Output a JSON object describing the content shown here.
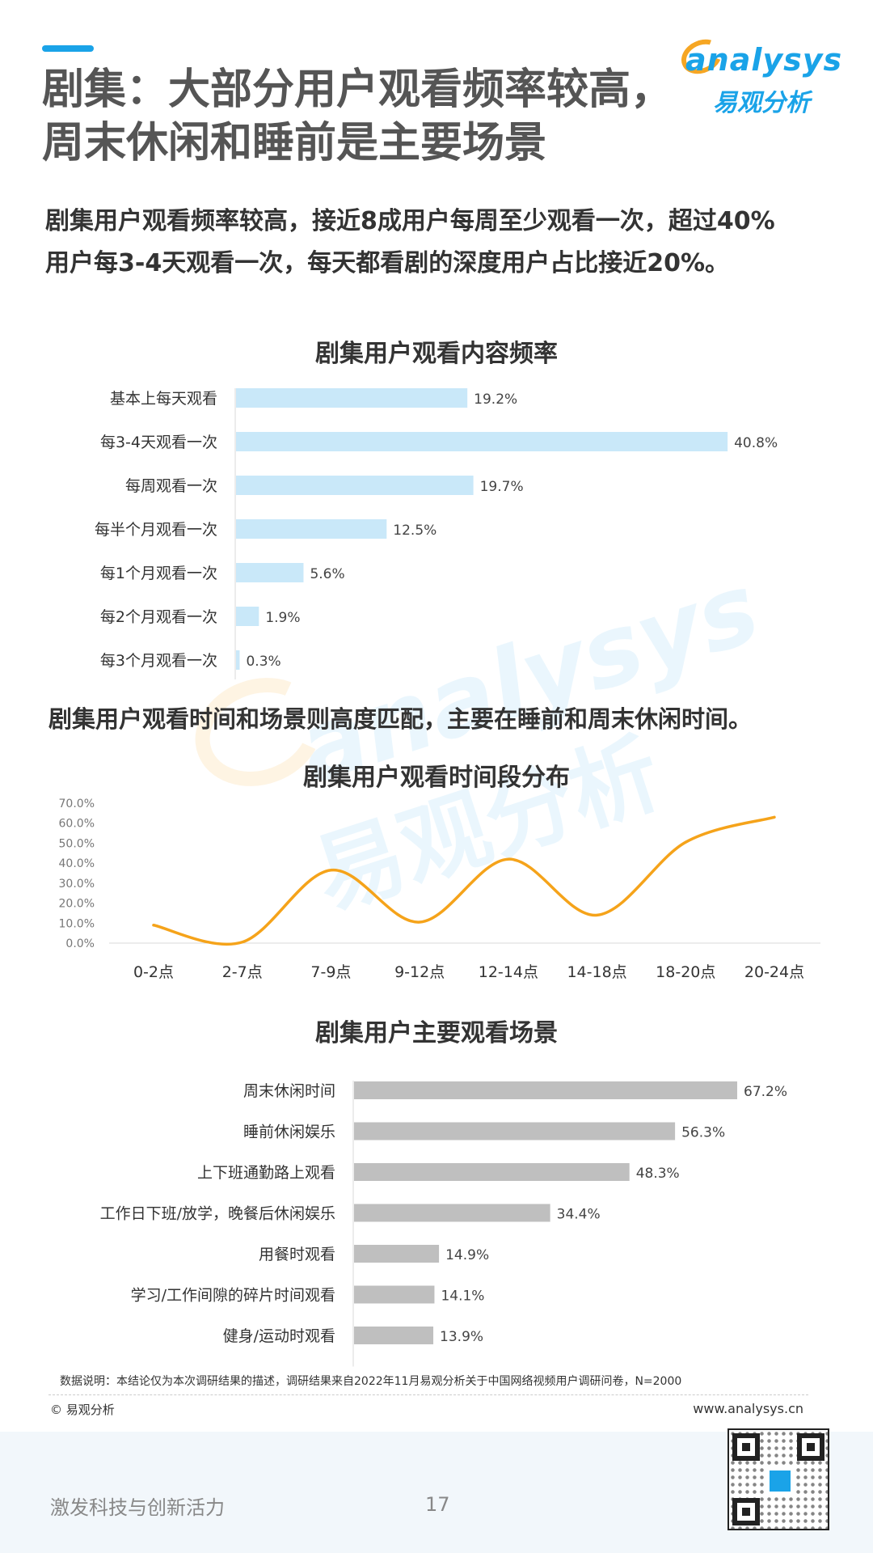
{
  "header": {
    "title_line1": "剧集：大部分用户观看频率较高，",
    "title_line2": "周末休闲和睡前是主要场景",
    "logo_en": "analysys",
    "logo_cn": "易观分析",
    "accent_color": "#1aa3e8"
  },
  "summary_line1": "剧集用户观看频率较高，接近8成用户每周至少观看一次，超过40%",
  "summary_line2": "用户每3-4天观看一次，每天都看剧的深度用户占比接近20%。",
  "subsummary": "剧集用户观看时间和场景则高度匹配，主要在睡前和周末休闲时间。",
  "chart_data": [
    {
      "type": "bar",
      "orientation": "horizontal",
      "title": "剧集用户观看内容频率",
      "categories": [
        "基本上每天观看",
        "每3-4天观看一次",
        "每周观看一次",
        "每半个月观看一次",
        "每1个月观看一次",
        "每2个月观看一次",
        "每3个月观看一次"
      ],
      "values": [
        19.2,
        40.8,
        19.7,
        12.5,
        5.6,
        1.9,
        0.3
      ],
      "labels": [
        "19.2%",
        "40.8%",
        "19.7%",
        "12.5%",
        "5.6%",
        "1.9%",
        "0.3%"
      ],
      "color": "#c9e8f9",
      "xlim": [
        0,
        42
      ]
    },
    {
      "type": "line",
      "title": "剧集用户观看时间段分布",
      "categories": [
        "0-2点",
        "2-7点",
        "7-9点",
        "9-12点",
        "12-14点",
        "14-18点",
        "18-20点",
        "20-24点"
      ],
      "values": [
        9.0,
        0.5,
        36.5,
        10.5,
        42.0,
        14.0,
        50.5,
        63.0
      ],
      "yticks": [
        "0.0%",
        "10.0%",
        "20.0%",
        "30.0%",
        "40.0%",
        "50.0%",
        "60.0%",
        "70.0%"
      ],
      "ylim": [
        0,
        70
      ],
      "color": "#f5a31a",
      "smooth": true
    },
    {
      "type": "bar",
      "orientation": "horizontal",
      "title": "剧集用户主要观看场景",
      "categories": [
        "周末休闲时间",
        "睡前休闲娱乐",
        "上下班通勤路上观看",
        "工作日下班/放学，晚餐后休闲娱乐",
        "用餐时观看",
        "学习/工作间隙的碎片时间观看",
        "健身/运动时观看"
      ],
      "values": [
        67.2,
        56.3,
        48.3,
        34.4,
        14.9,
        14.1,
        13.9
      ],
      "labels": [
        "67.2%",
        "56.3%",
        "48.3%",
        "34.4%",
        "14.9%",
        "14.1%",
        "13.9%"
      ],
      "color": "#bfbfbf",
      "xlim": [
        0,
        67.2
      ]
    }
  ],
  "watermark": {
    "en": "analysys",
    "cn": "易观分析"
  },
  "footer": {
    "note": "数据说明：本结论仅为本次调研结果的描述，调研结果来自2022年11月易观分析关于中国网络视频用户调研问卷，N=2000",
    "copyright": "© 易观分析",
    "website": "www.analysys.cn",
    "slogan": "激发科技与创新活力",
    "page_number": "17"
  }
}
